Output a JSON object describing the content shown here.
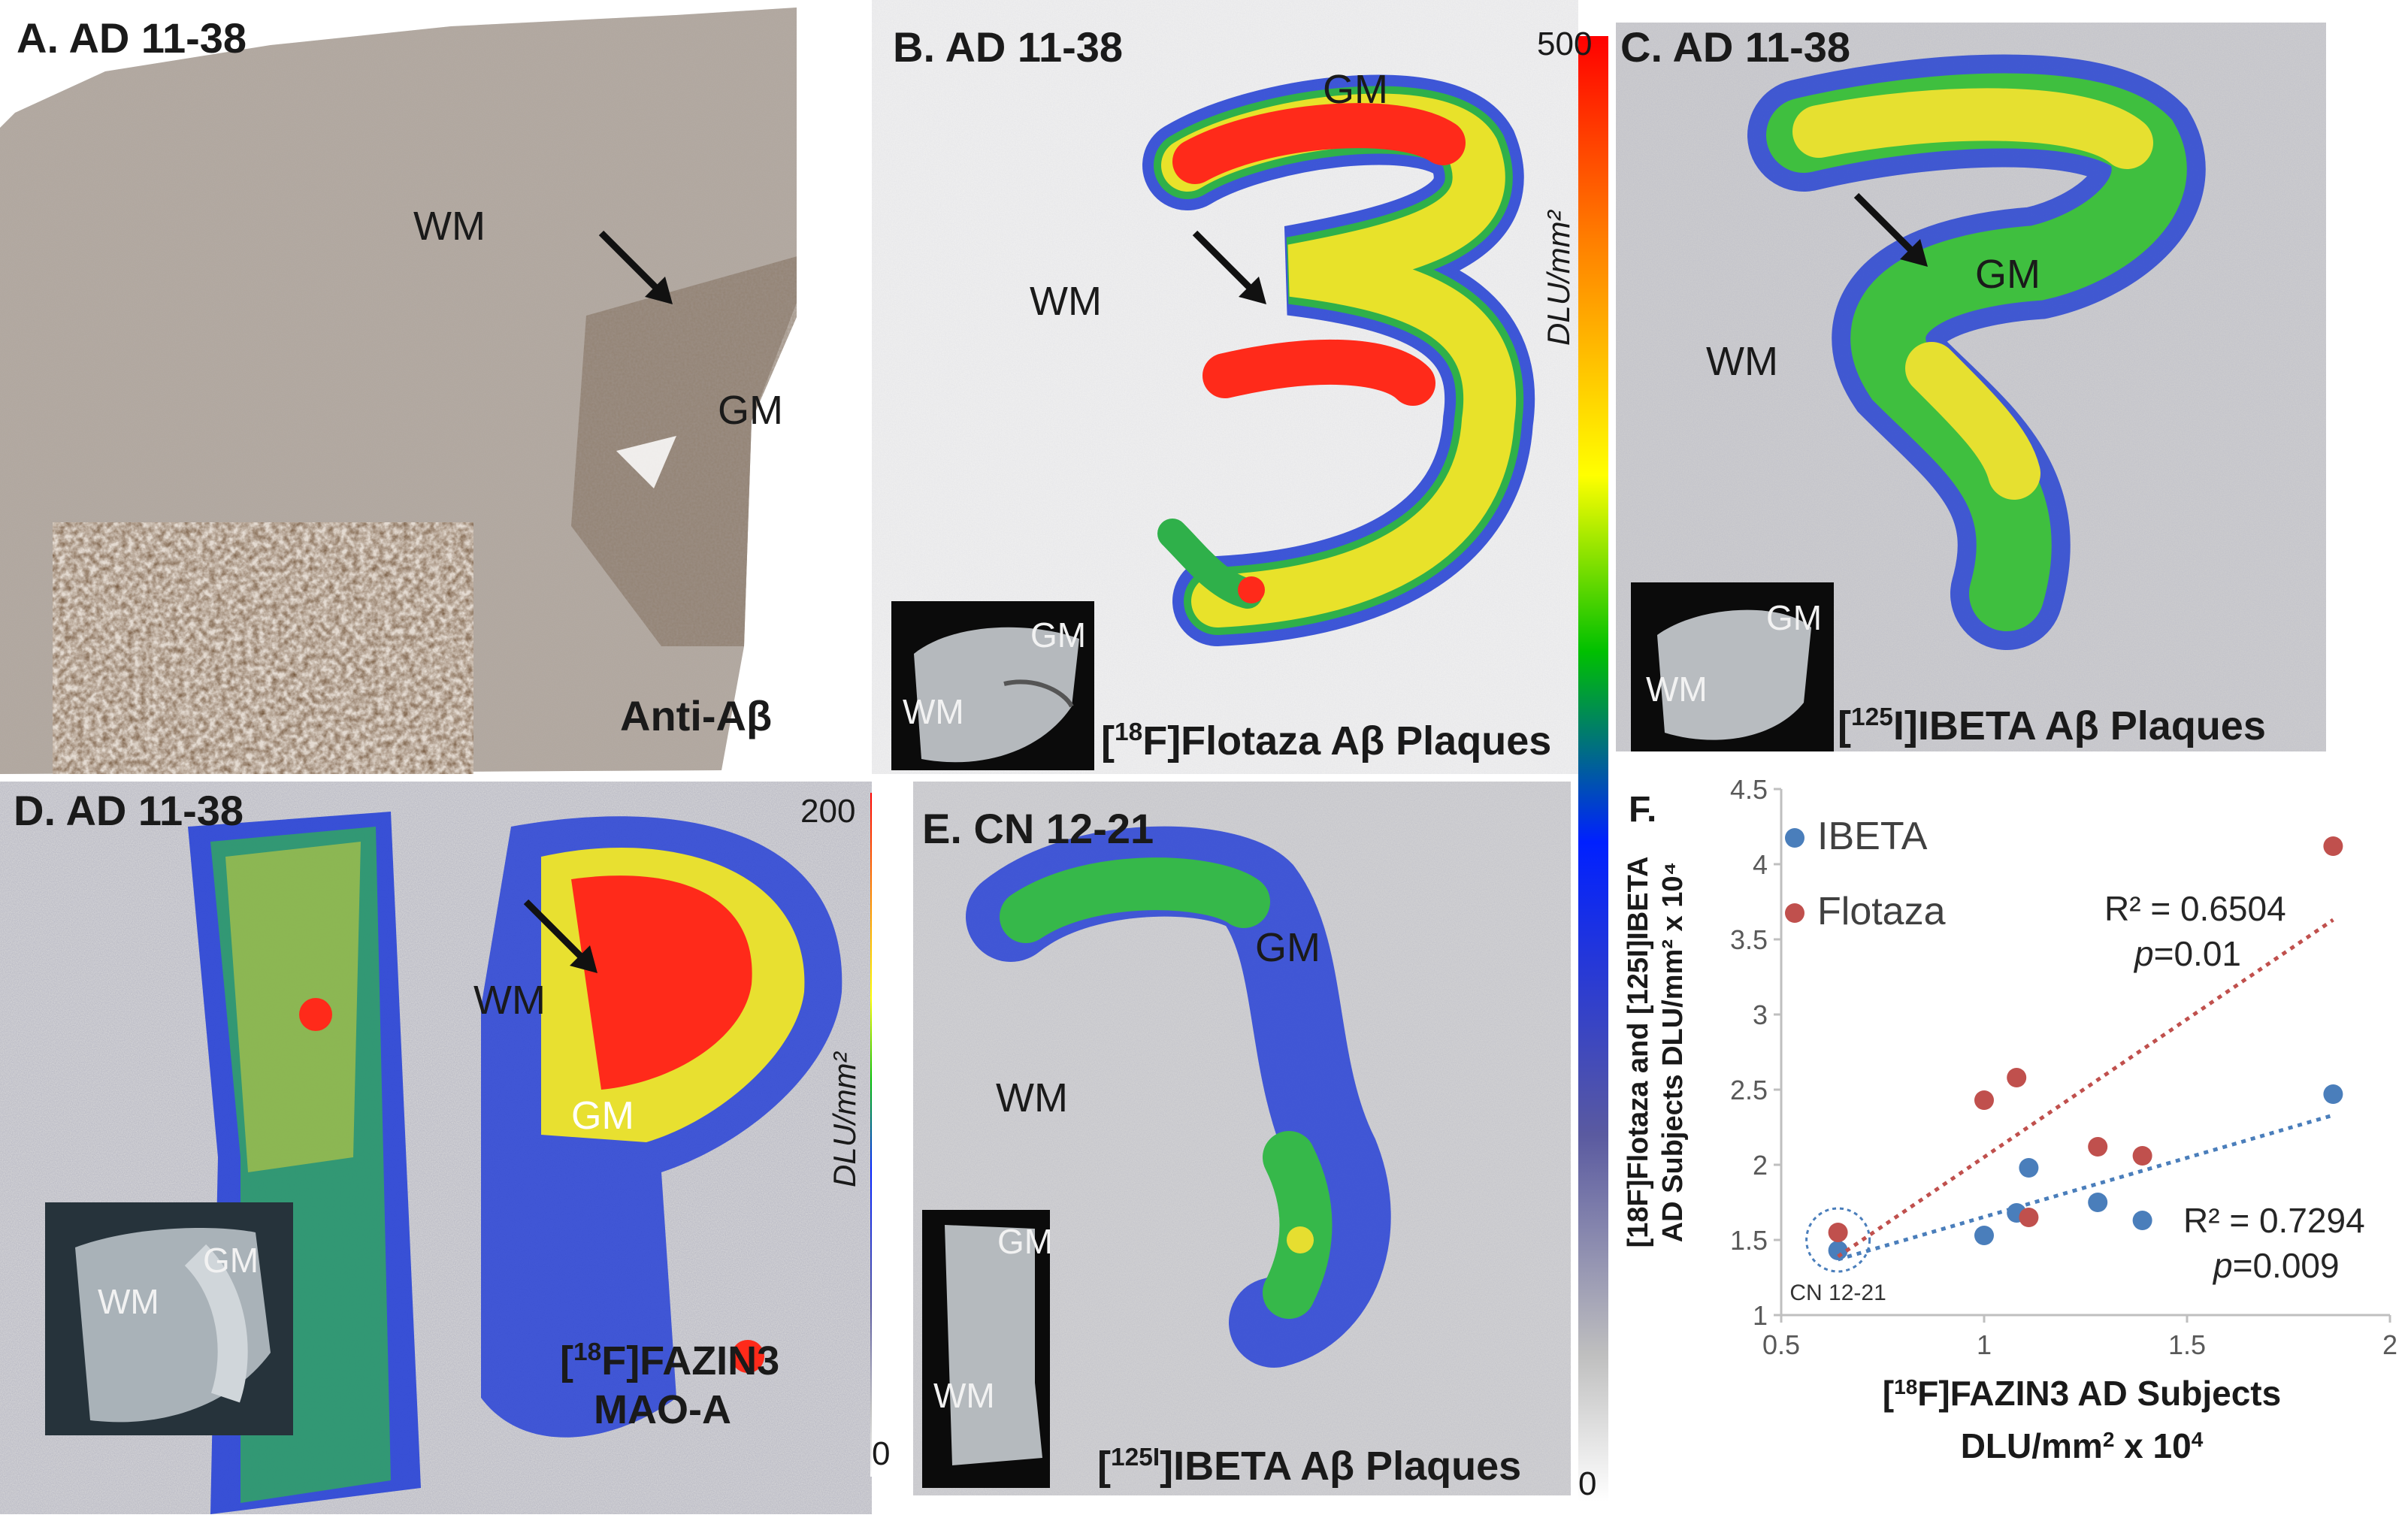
{
  "panels": {
    "A": {
      "title": "A. AD 11-38",
      "wm": "WM",
      "gm": "GM",
      "caption": "Anti-Aβ"
    },
    "B": {
      "title": "B. AD 11-38",
      "wm": "WM",
      "gm": "GM",
      "caption_sup": "18",
      "caption_pre": "[",
      "caption_post": "F]Flotaza Aβ Plaques",
      "inset_gm": "GM",
      "inset_wm": "WM",
      "scale_max": "500",
      "scale_min": "0",
      "scale_unit": "DLU/mm²"
    },
    "C": {
      "title": "C. AD 11-38",
      "wm": "WM",
      "gm": "GM",
      "caption_sup": "125",
      "caption_pre": "[",
      "caption_post": "I]IBETA Aβ Plaques",
      "inset_gm": "GM",
      "inset_wm": "WM"
    },
    "D": {
      "title": "D. AD 11-38",
      "wm": "WM",
      "gm": "GM",
      "caption_line1_pre": "[",
      "caption_line1_sup": "18",
      "caption_line1_post": "F]FAZIN3",
      "caption_line2": "MAO-A",
      "inset_gm": "GM",
      "inset_wm": "WM",
      "scale_max": "200",
      "scale_min": "0",
      "scale_unit": "DLU/mm²"
    },
    "E": {
      "title": "E. CN 12-21",
      "wm": "WM",
      "gm": "GM",
      "caption_sup": "125I",
      "caption_pre": "[",
      "caption_post": "]IBETA Aβ Plaques",
      "inset_gm": "GM",
      "inset_wm": "WM"
    },
    "F": {
      "title": "F."
    }
  },
  "colors": {
    "ibeta": "#4a7ebb",
    "flotaza": "#c0504d"
  },
  "chart_data": {
    "type": "scatter",
    "title": "",
    "xlabel_pre": "[",
    "xlabel_sup": "18",
    "xlabel_post": "F]FAZIN3 AD Subjects",
    "xlabel_line2_pre": "DLU/mm",
    "xlabel_line2_sup": "2",
    "xlabel_line2_post": " x 10",
    "xlabel_line2_sup2": "4",
    "ylabel_line1": "[18F]Flotaza and [125I]IBETA",
    "ylabel_line2": "AD Subjects DLU/mm² x 10⁴",
    "xlim": [
      0.5,
      2
    ],
    "ylim": [
      1,
      4.5
    ],
    "xticks": [
      "0.5",
      "1",
      "1.5",
      "2"
    ],
    "yticks": [
      "1",
      "1.5",
      "2",
      "2.5",
      "3",
      "3.5",
      "4",
      "4.5"
    ],
    "legend_position": "top-left",
    "annotation_cn": "CN 12-21",
    "series": [
      {
        "name": "IBETA",
        "color": "#4a7ebb",
        "x": [
          0.64,
          1.0,
          1.08,
          1.11,
          1.28,
          1.39,
          1.86
        ],
        "y": [
          1.43,
          1.53,
          1.68,
          1.98,
          1.75,
          1.63,
          2.47
        ],
        "r2": "R² = 0.7294",
        "p_pre": "p",
        "p_post": "=0.009",
        "trend": [
          [
            0.64,
            1.37
          ],
          [
            1.86,
            2.33
          ]
        ]
      },
      {
        "name": "Flotaza",
        "color": "#c0504d",
        "x": [
          0.64,
          1.0,
          1.08,
          1.11,
          1.28,
          1.39,
          1.86
        ],
        "y": [
          1.55,
          2.43,
          2.58,
          1.65,
          2.12,
          2.06,
          4.12
        ],
        "r2": "R² = 0.6504",
        "p_pre": "p",
        "p_post": "=0.01",
        "trend": [
          [
            0.64,
            1.39
          ],
          [
            1.86,
            3.63
          ]
        ]
      }
    ]
  }
}
